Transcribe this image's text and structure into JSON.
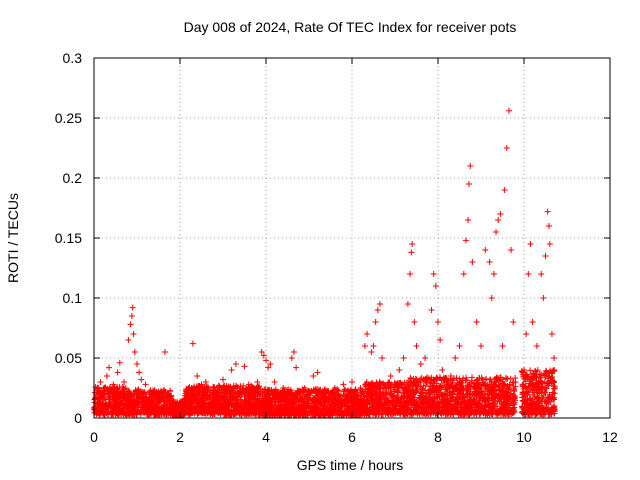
{
  "chart_data": {
    "type": "scatter",
    "title": "Day 008 of 2024, Rate Of TEC Index for receiver pots",
    "xlabel": "GPS time / hours",
    "ylabel": "ROTI / TECUs",
    "xlim": [
      0,
      12
    ],
    "ylim": [
      0,
      0.3
    ],
    "x_ticks": [
      0,
      2,
      4,
      6,
      8,
      10,
      12
    ],
    "y_ticks": [
      0,
      0.05,
      0.1,
      0.15,
      0.2,
      0.25,
      0.3
    ],
    "x_tick_labels": [
      "0",
      "2",
      "4",
      "6",
      "8",
      "10",
      "12"
    ],
    "y_tick_labels": [
      "0",
      "0.05",
      "0.1",
      "0.15",
      "0.2",
      "0.25",
      "0.3"
    ],
    "grid": true,
    "marker": "+",
    "color": "#ff0000",
    "series": [
      {
        "name": "ROTI",
        "points": [
          [
            0.05,
            0.012
          ],
          [
            0.1,
            0.025
          ],
          [
            0.15,
            0.03
          ],
          [
            0.2,
            0.018
          ],
          [
            0.3,
            0.035
          ],
          [
            0.35,
            0.042
          ],
          [
            0.45,
            0.028
          ],
          [
            0.55,
            0.038
          ],
          [
            0.6,
            0.046
          ],
          [
            0.7,
            0.03
          ],
          [
            0.8,
            0.065
          ],
          [
            0.85,
            0.078
          ],
          [
            0.88,
            0.085
          ],
          [
            0.9,
            0.092
          ],
          [
            0.92,
            0.07
          ],
          [
            0.95,
            0.055
          ],
          [
            1.0,
            0.045
          ],
          [
            1.05,
            0.038
          ],
          [
            1.1,
            0.032
          ],
          [
            1.2,
            0.028
          ],
          [
            1.3,
            0.022
          ],
          [
            1.4,
            0.018
          ],
          [
            1.5,
            0.02
          ],
          [
            1.65,
            0.055
          ],
          [
            1.8,
            0.015
          ],
          [
            2.0,
            0.012
          ],
          [
            2.2,
            0.02
          ],
          [
            2.3,
            0.062
          ],
          [
            2.4,
            0.035
          ],
          [
            2.5,
            0.028
          ],
          [
            2.6,
            0.03
          ],
          [
            2.8,
            0.025
          ],
          [
            3.0,
            0.032
          ],
          [
            3.2,
            0.04
          ],
          [
            3.3,
            0.045
          ],
          [
            3.5,
            0.043
          ],
          [
            3.6,
            0.028
          ],
          [
            3.8,
            0.03
          ],
          [
            3.9,
            0.055
          ],
          [
            3.95,
            0.052
          ],
          [
            4.0,
            0.048
          ],
          [
            4.05,
            0.042
          ],
          [
            4.1,
            0.045
          ],
          [
            4.2,
            0.03
          ],
          [
            4.4,
            0.025
          ],
          [
            4.6,
            0.05
          ],
          [
            4.65,
            0.055
          ],
          [
            4.7,
            0.042
          ],
          [
            4.9,
            0.025
          ],
          [
            5.1,
            0.035
          ],
          [
            5.2,
            0.038
          ],
          [
            5.4,
            0.022
          ],
          [
            5.6,
            0.025
          ],
          [
            5.8,
            0.028
          ],
          [
            6.0,
            0.03
          ],
          [
            6.2,
            0.025
          ],
          [
            6.3,
            0.06
          ],
          [
            6.35,
            0.07
          ],
          [
            6.45,
            0.055
          ],
          [
            6.5,
            0.06
          ],
          [
            6.55,
            0.08
          ],
          [
            6.6,
            0.09
          ],
          [
            6.65,
            0.095
          ],
          [
            6.7,
            0.05
          ],
          [
            6.9,
            0.035
          ],
          [
            7.1,
            0.04
          ],
          [
            7.2,
            0.05
          ],
          [
            7.3,
            0.095
          ],
          [
            7.35,
            0.12
          ],
          [
            7.38,
            0.138
          ],
          [
            7.4,
            0.145
          ],
          [
            7.45,
            0.08
          ],
          [
            7.5,
            0.06
          ],
          [
            7.6,
            0.045
          ],
          [
            7.7,
            0.05
          ],
          [
            7.85,
            0.09
          ],
          [
            7.9,
            0.12
          ],
          [
            7.95,
            0.11
          ],
          [
            8.0,
            0.08
          ],
          [
            8.05,
            0.065
          ],
          [
            8.1,
            0.04
          ],
          [
            8.3,
            0.035
          ],
          [
            8.4,
            0.05
          ],
          [
            8.5,
            0.06
          ],
          [
            8.6,
            0.12
          ],
          [
            8.65,
            0.148
          ],
          [
            8.7,
            0.165
          ],
          [
            8.72,
            0.195
          ],
          [
            8.75,
            0.21
          ],
          [
            8.8,
            0.13
          ],
          [
            8.9,
            0.08
          ],
          [
            9.0,
            0.06
          ],
          [
            9.1,
            0.14
          ],
          [
            9.2,
            0.13
          ],
          [
            9.25,
            0.1
          ],
          [
            9.3,
            0.12
          ],
          [
            9.35,
            0.155
          ],
          [
            9.4,
            0.165
          ],
          [
            9.45,
            0.17
          ],
          [
            9.5,
            0.06
          ],
          [
            9.55,
            0.19
          ],
          [
            9.6,
            0.225
          ],
          [
            9.65,
            0.256
          ],
          [
            9.7,
            0.14
          ],
          [
            9.75,
            0.08
          ],
          [
            9.8,
            0.03
          ],
          [
            10.0,
            0.04
          ],
          [
            10.05,
            0.07
          ],
          [
            10.1,
            0.12
          ],
          [
            10.15,
            0.145
          ],
          [
            10.2,
            0.08
          ],
          [
            10.3,
            0.06
          ],
          [
            10.4,
            0.12
          ],
          [
            10.45,
            0.1
          ],
          [
            10.5,
            0.135
          ],
          [
            10.55,
            0.172
          ],
          [
            10.58,
            0.16
          ],
          [
            10.6,
            0.145
          ],
          [
            10.65,
            0.07
          ],
          [
            10.7,
            0.05
          ]
        ]
      }
    ],
    "dense_bands": [
      {
        "x_range": [
          0.0,
          0.75
        ],
        "y_range": [
          0.003,
          0.026
        ]
      },
      {
        "x_range": [
          0.75,
          1.8
        ],
        "y_range": [
          0.003,
          0.024
        ]
      },
      {
        "x_range": [
          1.8,
          2.1
        ],
        "y_range": [
          0.002,
          0.014
        ]
      },
      {
        "x_range": [
          2.1,
          3.9
        ],
        "y_range": [
          0.003,
          0.027
        ]
      },
      {
        "x_range": [
          3.9,
          6.3
        ],
        "y_range": [
          0.002,
          0.024
        ]
      },
      {
        "x_range": [
          6.3,
          7.3
        ],
        "y_range": [
          0.003,
          0.03
        ]
      },
      {
        "x_range": [
          7.3,
          9.8
        ],
        "y_range": [
          0.003,
          0.034
        ]
      },
      {
        "x_range": [
          9.95,
          10.72
        ],
        "y_range": [
          0.003,
          0.04
        ]
      }
    ]
  }
}
